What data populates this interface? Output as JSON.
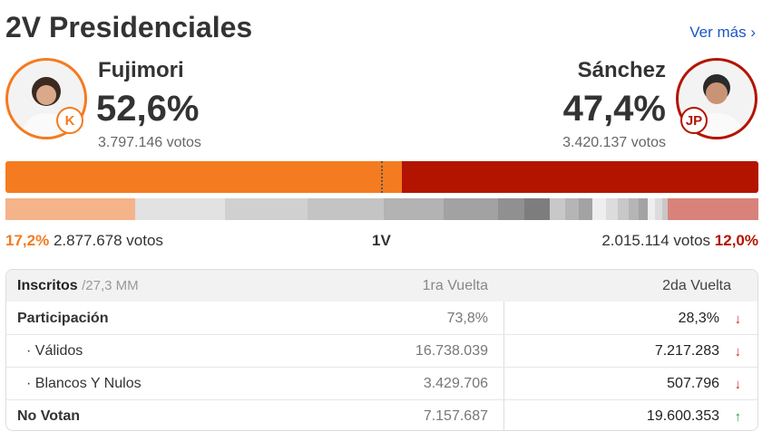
{
  "header": {
    "title": "2V Presidenciales",
    "link": "Ver más"
  },
  "candidates": [
    {
      "name": "Fujimori",
      "logo": "K",
      "percent": {
        "value": 52.6,
        "label": "52,6%"
      },
      "votes": "3.797.146 votos",
      "color": "#f47b20"
    },
    {
      "name": "Sánchez",
      "logo": "JP",
      "percent": {
        "value": 47.4,
        "label": "47,4%"
      },
      "votes": "3.420.137 votos",
      "color": "#b31400"
    }
  ],
  "first_round": {
    "label": "1V",
    "left": {
      "percent": {
        "value": 17.2,
        "label": "17,2%"
      },
      "votes": "2.877.678 votos",
      "color": "#f5b389"
    },
    "right": {
      "percent": {
        "value": 12.0,
        "label": "12,0%"
      },
      "votes": "2.015.114 votos",
      "color": "#d9827a"
    },
    "others": [
      11.9,
      11.0,
      10.1,
      8.0,
      7.2,
      3.5,
      3.4,
      2.0,
      1.9,
      1.8,
      1.7,
      1.6,
      1.5,
      1.3,
      1.2,
      1.0,
      0.9,
      0.8
    ]
  },
  "table": {
    "header": {
      "label": "Inscritos",
      "note": "/27,3 MM",
      "col1": "1ra Vuelta",
      "col2": "2da Vuelta"
    },
    "rows": [
      {
        "label": "Participación",
        "bold": true,
        "indent": false,
        "first": "73,8%",
        "second": "28,3%",
        "trend": "down"
      },
      {
        "label": "· Válidos",
        "bold": false,
        "indent": true,
        "first": "16.738.039",
        "second": "7.217.283",
        "trend": "down"
      },
      {
        "label": "· Blancos Y Nulos",
        "bold": false,
        "indent": true,
        "first": "3.429.706",
        "second": "507.796",
        "trend": "down"
      },
      {
        "label": "No Votan",
        "bold": true,
        "indent": false,
        "first": "7.157.687",
        "second": "19.600.353",
        "trend": "up"
      }
    ]
  }
}
